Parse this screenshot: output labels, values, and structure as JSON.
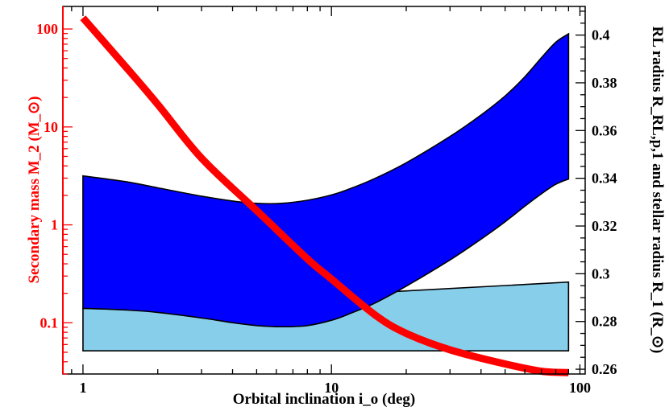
{
  "chart_data": {
    "type": "area",
    "xlabel": "Orbital inclination i_o (deg)",
    "xscale": "log",
    "xlim": [
      0.83,
      105
    ],
    "xticks": [
      1,
      10,
      100
    ],
    "xtick_labels": [
      "1",
      "10",
      "100"
    ],
    "y_left": {
      "label": "Secondary mass M_2 (M_⊙)",
      "scale": "log",
      "ylim": [
        0.03,
        170
      ],
      "ticks": [
        0.1,
        1,
        10,
        100
      ],
      "tick_labels": [
        "0.1",
        "1",
        "10",
        "100"
      ],
      "color": "#ff0000"
    },
    "y_right": {
      "label": "RL radius R_RL,p,1 and stellar radius R_1 (R_⊙)",
      "scale": "linear",
      "ylim": [
        0.258,
        0.412
      ],
      "ticks": [
        0.26,
        0.28,
        0.3,
        0.32,
        0.34,
        0.36,
        0.38,
        0.4
      ],
      "tick_labels": [
        "0.26",
        "0.28",
        "0.3",
        "0.32",
        "0.34",
        "0.36",
        "0.38",
        "0.4"
      ],
      "color": "#000000"
    },
    "series": [
      {
        "axis": "left",
        "kind": "line",
        "color": "#ff0000",
        "x": [
          1,
          1.5,
          2,
          3,
          5,
          8,
          10,
          15,
          20,
          30,
          50,
          70,
          90
        ],
        "y": [
          130,
          40,
          17,
          4.8,
          1.4,
          0.45,
          0.28,
          0.12,
          0.078,
          0.053,
          0.038,
          0.032,
          0.031
        ]
      },
      {
        "axis": "right",
        "kind": "band",
        "color": "#0000ff",
        "x": [
          1,
          1.5,
          2,
          3,
          4,
          5,
          6.3,
          8,
          10,
          12,
          15,
          20,
          30,
          40,
          50,
          60,
          70,
          80,
          90
        ],
        "upper": [
          0.341,
          0.3385,
          0.336,
          0.3325,
          0.3305,
          0.3295,
          0.3295,
          0.3308,
          0.333,
          0.3358,
          0.34,
          0.3465,
          0.3575,
          0.3665,
          0.3745,
          0.3825,
          0.3905,
          0.397,
          0.4005
        ],
        "lower": [
          0.2855,
          0.2848,
          0.2838,
          0.2815,
          0.2795,
          0.2783,
          0.2778,
          0.2783,
          0.2805,
          0.2835,
          0.2878,
          0.2948,
          0.3058,
          0.3145,
          0.3218,
          0.3283,
          0.3335,
          0.3375,
          0.3397
        ]
      },
      {
        "axis": "right",
        "kind": "band",
        "color": "#87ceeb",
        "x": [
          1,
          90
        ],
        "upper": [
          0.2855,
          0.2965
        ],
        "lower": [
          0.2677,
          0.2677
        ]
      }
    ]
  }
}
